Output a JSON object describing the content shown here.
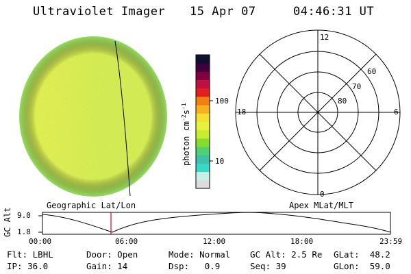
{
  "header": {
    "title": "Ultraviolet Imager",
    "date": "15 Apr 07",
    "time": "04:46:31 UT"
  },
  "disk": {
    "caption": "Geographic Lat/Lon",
    "base_color": "#d8ec48",
    "edge_color": "#86dc66",
    "left_color": "#eef242"
  },
  "polar": {
    "caption": "Apex MLat/MLT",
    "mlt_labels": {
      "top": "12",
      "right": "6",
      "bottom": "0",
      "left": "18"
    },
    "mlat_labels": [
      "60",
      "70",
      "80"
    ]
  },
  "colorbar": {
    "tick_labels": [
      "100",
      "10"
    ],
    "unit_text": "photon cm",
    "unit_exp1": "-2",
    "unit_s": "s",
    "unit_exp2": "-1",
    "colors": [
      "#dcdcdc",
      "#c8f0e8",
      "#38d8c8",
      "#40c0a8",
      "#50d070",
      "#88dc30",
      "#c8ec30",
      "#e8f040",
      "#f4e030",
      "#f8b020",
      "#f08010",
      "#e02020",
      "#c01040",
      "#800040",
      "#400040",
      "#101030"
    ]
  },
  "timeline": {
    "ylabel": "GC Alt",
    "ytick_top": "9.0",
    "ytick_bottom": "1.8",
    "xticks": [
      "00:00",
      "06:00",
      "12:00",
      "18:00",
      "23:59"
    ],
    "cursor_color": "#e00000"
  },
  "info": {
    "row1": [
      {
        "label": "Flt:",
        "value": "LBHL"
      },
      {
        "label": "Door:",
        "value": "Open"
      },
      {
        "label": "Mode:",
        "value": "Normal"
      },
      {
        "label": "GC Alt:",
        "value": "2.5 Re"
      },
      {
        "label": "GLat:",
        "value": "48.2"
      }
    ],
    "row2": [
      {
        "label": "IP:",
        "value": "36.0"
      },
      {
        "label": "Gain:",
        "value": "14"
      },
      {
        "label": "Dsp:",
        "value": "0.9"
      },
      {
        "label": "Seq:",
        "value": "39"
      },
      {
        "label": "GLon:",
        "value": "59.0"
      }
    ]
  }
}
